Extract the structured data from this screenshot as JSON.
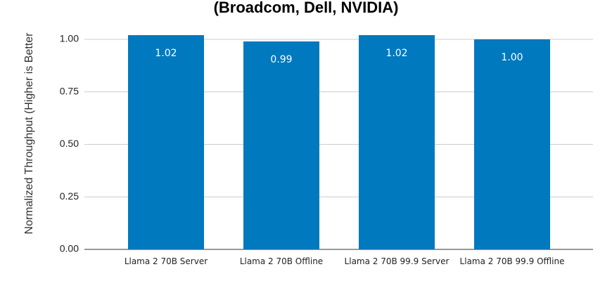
{
  "chart_data": {
    "type": "bar",
    "title": "(Broadcom, Dell, NVIDIA)",
    "y_label": "Normalized Throughput (Higher is Better",
    "categories": [
      "Llama 2 70B Server",
      "Llama 2 70B Offline",
      "Llama 2 70B 99.9 Server",
      "Llama 2 70B 99.9 Offline"
    ],
    "values": [
      1.02,
      0.99,
      1.02,
      1.0
    ],
    "value_labels": [
      "1.02",
      "0.99",
      "1.02",
      "1.00"
    ],
    "color": "#0179be",
    "ylim": [
      0,
      1
    ],
    "yticks": [
      {
        "value": 0,
        "label": "0.00"
      },
      {
        "value": 0.25,
        "label": "0.25"
      },
      {
        "value": 0.5,
        "label": "0.50"
      },
      {
        "value": 0.75,
        "label": "0.75"
      },
      {
        "value": 1,
        "label": "1.00"
      }
    ],
    "grid": true
  }
}
